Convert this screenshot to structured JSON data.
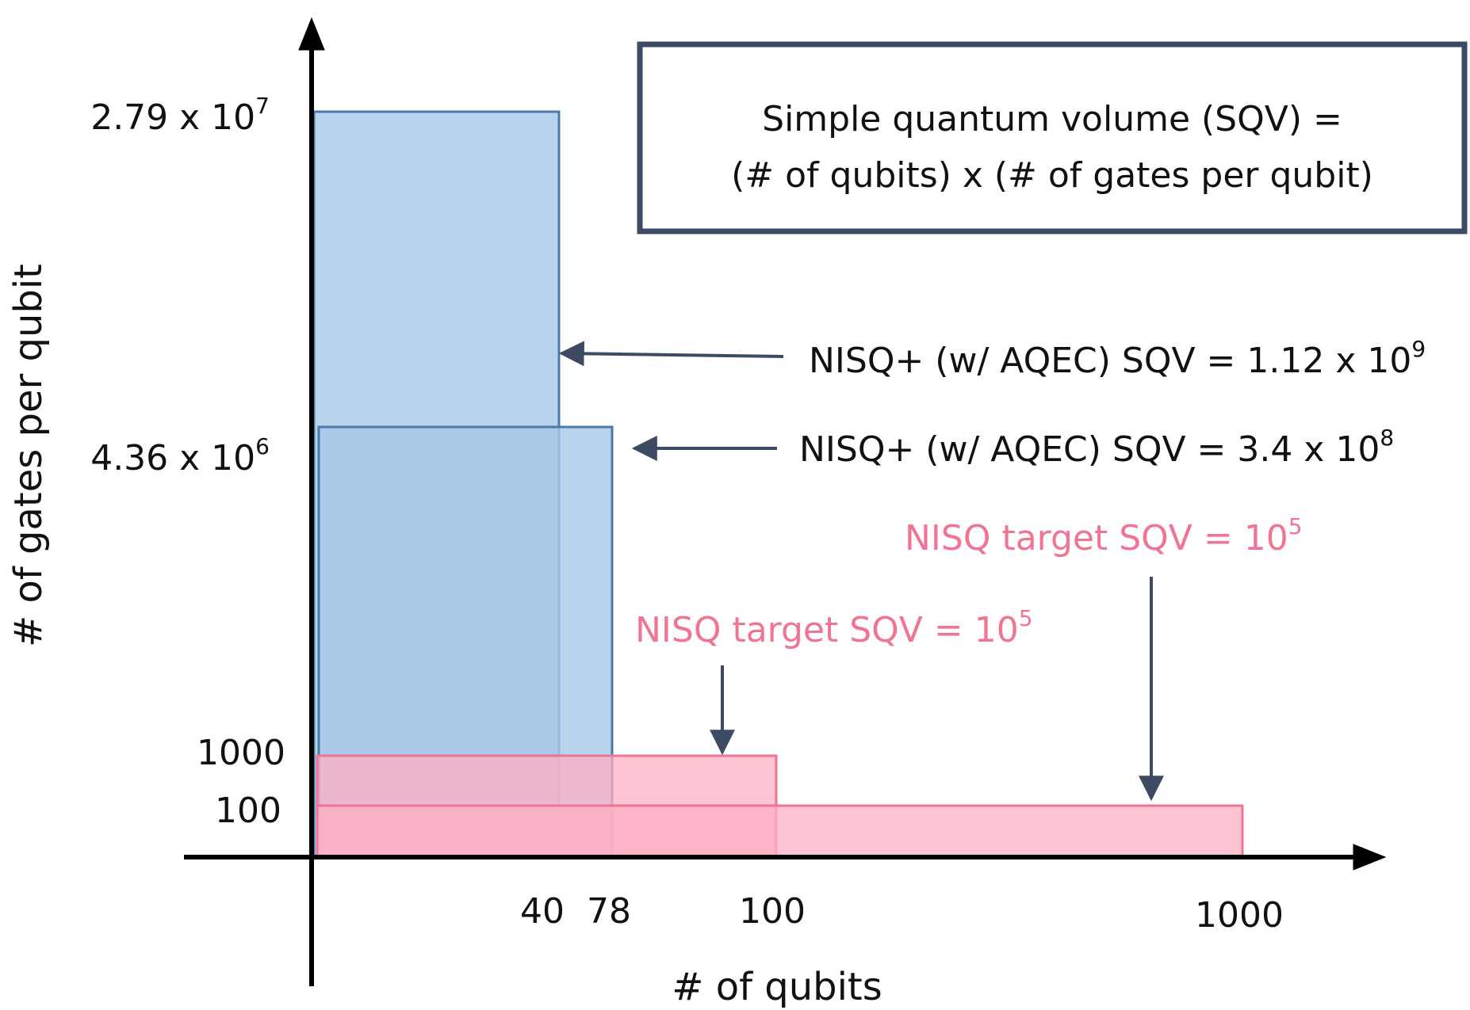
{
  "formula": {
    "line1": "Simple quantum volume (SQV) =",
    "line2": "(# of qubits) x (# of gates per qubit)"
  },
  "axes": {
    "x_label": "# of qubits",
    "y_label": "# of gates per qubit",
    "x_ticks": [
      "40",
      "78",
      "100",
      "1000"
    ],
    "y_ticks": {
      "t1000": "1000",
      "t100": "100",
      "t436_mant": "4.36 x 10",
      "t436_exp": "6",
      "t279_mant": "2.79 x 10",
      "t279_exp": "7"
    }
  },
  "annotations": {
    "nisq_plus_1": {
      "base": "NISQ+ (w/ AQEC) SQV = 1.12 x 10",
      "exp": "9"
    },
    "nisq_plus_2": {
      "base": "NISQ+ (w/ AQEC) SQV = 3.4 x 10",
      "exp": "8"
    },
    "nisq_target_1": {
      "base": "NISQ target SQV = 10",
      "exp": "5"
    },
    "nisq_target_2": {
      "base": "NISQ target SQV = 10",
      "exp": "5"
    }
  },
  "colors": {
    "blue_fill": "#a8c8e8",
    "blue_stroke": "#4a7aa8",
    "pink_fill": "#ffb0c4",
    "pink_stroke": "#f07592",
    "arrow": "#3d4a63",
    "box_border": "#3d4a63"
  }
}
